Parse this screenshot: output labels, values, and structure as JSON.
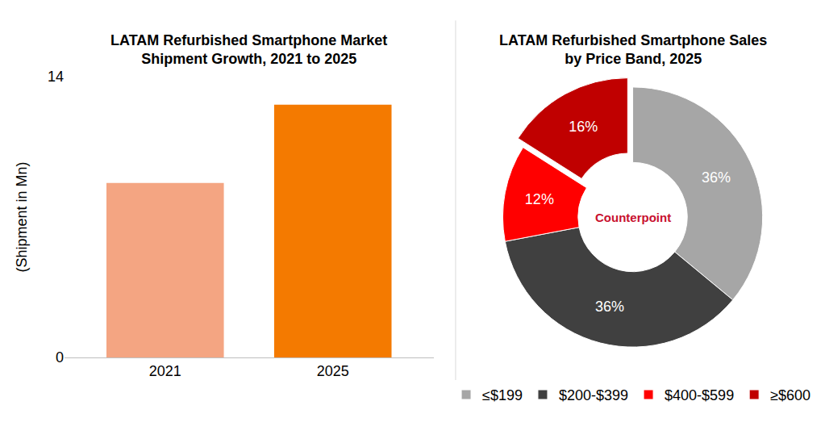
{
  "chart_data": [
    {
      "type": "bar",
      "title": "LATAM Refurbished Smartphone Market Shipment Growth, 2021 to 2025",
      "y_label": "(Shipment in Mn)",
      "categories": [
        "2021",
        "2025"
      ],
      "values": [
        8.7,
        12.6
      ],
      "colors": [
        "#F4A582",
        "#F47A00"
      ],
      "ylim": [
        0,
        14
      ],
      "yticks": [
        0,
        14
      ],
      "grid": false,
      "data_labels": false
    },
    {
      "type": "pie",
      "title": "LATAM Refurbished Smartphone Sales by Price Band, 2025",
      "categories": [
        "≤$199",
        "$200-$399",
        "$400-$599",
        "≥$600"
      ],
      "values": [
        36,
        36,
        12,
        16
      ],
      "value_labels": [
        "36%",
        "36%",
        "12%",
        "16%"
      ],
      "colors": [
        "#A6A6A6",
        "#404040",
        "#FF0000",
        "#C00000"
      ],
      "data_labels": true,
      "legend": "bottom",
      "annotation": "Counterpoint"
    }
  ]
}
